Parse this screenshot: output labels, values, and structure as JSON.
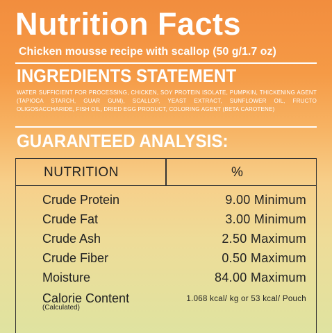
{
  "header": {
    "title": "Nutrition  Facts",
    "subtitle": "Chicken mousse recipe with scallop  (50 g/1.7 oz)"
  },
  "ingredients": {
    "heading": "INGREDIENTS STATEMENT",
    "text": "WATER SUFFICIENT FOR PROCESSING, CHICKEN, SOY PROTEIN ISOLATE, PUMPKIN, THICKENING AGENT (TAPIOCA STARCH, GUAR GUM), SCALLOP,  YEAST EXTRACT, SUNFLOWER OIL, FRUCTO OLIGOSACCHARIDE, FISH OIL, DRIED EGG PRODUCT, COLORING AGENT (BETA CAROTENE)"
  },
  "analysis": {
    "heading": "GUARANTEED ANALYSIS:",
    "columns": {
      "name": "NUTRITION",
      "value": "%"
    },
    "rows": [
      {
        "label": "Crude Protein",
        "value": "9.00 Minimum"
      },
      {
        "label": "Crude Fat",
        "value": "3.00 Minimum"
      },
      {
        "label": "Crude Ash",
        "value": "2.50 Maximum"
      },
      {
        "label": "Crude Fiber",
        "value": "0.50 Maximum"
      },
      {
        "label": "Moisture",
        "value": "84.00 Maximum"
      },
      {
        "label": "Calorie Content",
        "sublabel": "(Calculated)",
        "value": "1.068 kcal/ kg or 53 kcal/ Pouch"
      }
    ]
  }
}
